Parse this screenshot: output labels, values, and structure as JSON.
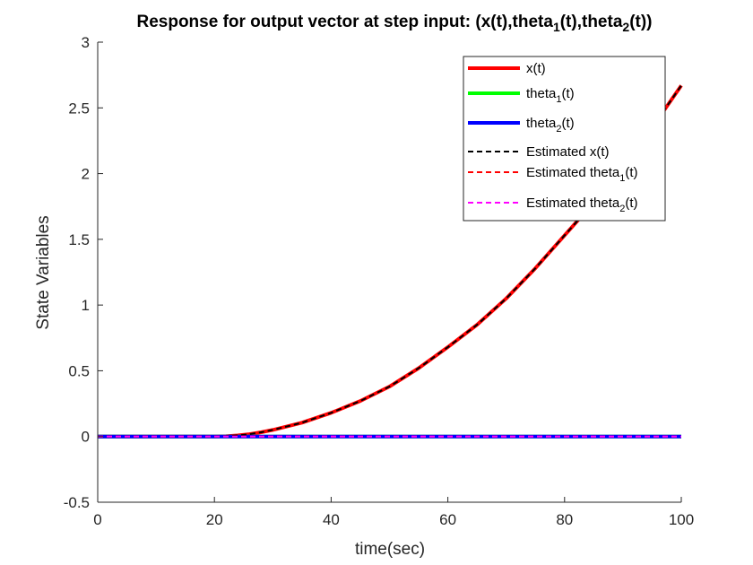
{
  "chart_data": {
    "type": "line",
    "title": "Response for output vector at step input: (x(t),theta_1(t),theta_2(t))",
    "title_parts": [
      {
        "text": "Response for output vector at step input: (x(t),theta",
        "sub": false
      },
      {
        "text": "1",
        "sub": true
      },
      {
        "text": "(t),theta",
        "sub": false
      },
      {
        "text": "2",
        "sub": true
      },
      {
        "text": "(t))",
        "sub": false
      }
    ],
    "xlabel": "time(sec)",
    "ylabel": "State Variables",
    "xlim": [
      0,
      100
    ],
    "ylim": [
      -0.5,
      3
    ],
    "xticks": [
      0,
      20,
      40,
      60,
      80,
      100
    ],
    "yticks": [
      -0.5,
      0,
      0.5,
      1,
      1.5,
      2,
      2.5,
      3
    ],
    "ytick_labels": [
      "-0.5",
      "0",
      "0.5",
      "1",
      "1.5",
      "2",
      "2.5",
      "3"
    ],
    "grid": false,
    "legend_position": "top-right",
    "series": [
      {
        "name": "x(t)",
        "legend_parts": [
          {
            "text": "x(t)",
            "sub": false
          }
        ],
        "color": "#ff0000",
        "style": "solid",
        "width": 4,
        "x": [
          0,
          10,
          20,
          22,
          24,
          26,
          28,
          30,
          35,
          40,
          45,
          50,
          55,
          60,
          65,
          70,
          75,
          80,
          85,
          90,
          95,
          100
        ],
        "y": [
          0,
          0,
          0,
          0.002,
          0.008,
          0.018,
          0.032,
          0.05,
          0.105,
          0.18,
          0.27,
          0.38,
          0.52,
          0.68,
          0.85,
          1.05,
          1.28,
          1.53,
          1.78,
          2.06,
          2.35,
          2.67
        ]
      },
      {
        "name": "theta_1(t)",
        "legend_parts": [
          {
            "text": "theta",
            "sub": false
          },
          {
            "text": "1",
            "sub": true
          },
          {
            "text": "(t)",
            "sub": false
          }
        ],
        "color": "#00ff00",
        "style": "solid",
        "width": 4,
        "x": [
          0,
          100
        ],
        "y": [
          0,
          0
        ]
      },
      {
        "name": "theta_2(t)",
        "legend_parts": [
          {
            "text": "theta",
            "sub": false
          },
          {
            "text": "2",
            "sub": true
          },
          {
            "text": "(t)",
            "sub": false
          }
        ],
        "color": "#0000ff",
        "style": "solid",
        "width": 4,
        "x": [
          0,
          100
        ],
        "y": [
          0,
          0
        ]
      },
      {
        "name": "Estimated x(t)",
        "legend_parts": [
          {
            "text": "Estimated x(t)",
            "sub": false
          }
        ],
        "color": "#000000",
        "style": "dashed",
        "width": 2,
        "x": [
          0,
          10,
          20,
          22,
          24,
          26,
          28,
          30,
          35,
          40,
          45,
          50,
          55,
          60,
          65,
          70,
          75,
          80,
          85,
          90,
          95,
          100
        ],
        "y": [
          0,
          0,
          0,
          0.002,
          0.008,
          0.018,
          0.032,
          0.05,
          0.105,
          0.18,
          0.27,
          0.38,
          0.52,
          0.68,
          0.85,
          1.05,
          1.28,
          1.53,
          1.78,
          2.06,
          2.35,
          2.67
        ]
      },
      {
        "name": "Estimated theta_1(t)",
        "legend_parts": [
          {
            "text": "Estimated theta",
            "sub": false
          },
          {
            "text": "1",
            "sub": true
          },
          {
            "text": "(t)",
            "sub": false
          }
        ],
        "color": "#ff0000",
        "style": "dashed",
        "width": 2,
        "x": [
          0,
          100
        ],
        "y": [
          0,
          0
        ]
      },
      {
        "name": "Estimated theta_2(t)",
        "legend_parts": [
          {
            "text": "Estimated theta",
            "sub": false
          },
          {
            "text": "2",
            "sub": true
          },
          {
            "text": "(t)",
            "sub": false
          }
        ],
        "color": "#ff00ff",
        "style": "dashed",
        "width": 2,
        "x": [
          0,
          100
        ],
        "y": [
          0,
          0
        ]
      }
    ]
  }
}
